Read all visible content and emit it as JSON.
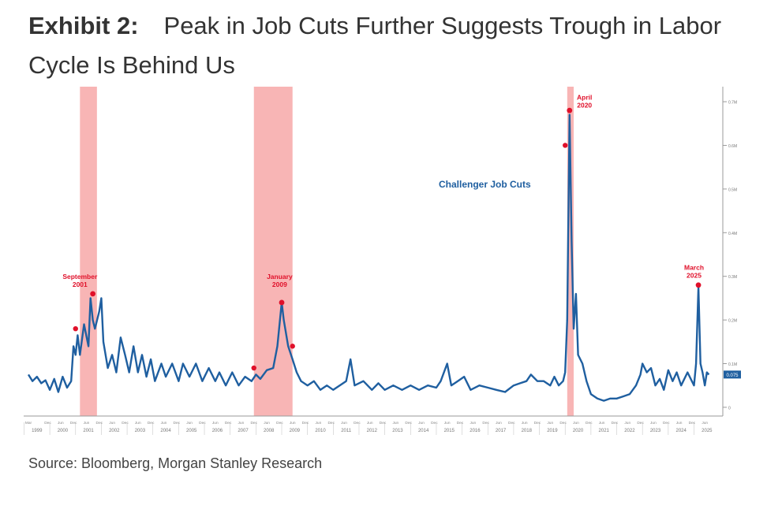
{
  "header": {
    "exhibit_label": "Exhibit 2:",
    "title": "Peak in Job Cuts Further Suggests Trough in Labor Cycle Is Behind Us"
  },
  "source": "Source: Bloomberg, Morgan Stanley Research",
  "colors": {
    "line": "#1f5fa0",
    "recession": "#f7a8a8",
    "annotation": "#e0102a",
    "label": "#1f5fa0"
  },
  "chart_data": {
    "type": "line",
    "series_label": "Challenger Job Cuts",
    "last_value_label": "0.075",
    "x_domain": [
      1999.17,
      2025.75
    ],
    "ylim": [
      -0.02,
      0.72
    ],
    "y_ticks": [
      {
        "value": 0,
        "label": "0"
      },
      {
        "value": 0.1,
        "label": "0.1M"
      },
      {
        "value": 0.2,
        "label": "0.2M"
      },
      {
        "value": 0.3,
        "label": "0.3M"
      },
      {
        "value": 0.4,
        "label": "0.4M"
      },
      {
        "value": 0.5,
        "label": "0.5M"
      },
      {
        "value": 0.6,
        "label": "0.6M"
      },
      {
        "value": 0.7,
        "label": "0.7M"
      }
    ],
    "year_labels": [
      "1999",
      "2000",
      "2001",
      "2002",
      "2003",
      "2004",
      "2005",
      "2006",
      "2007",
      "2008",
      "2009",
      "2010",
      "2011",
      "2012",
      "2013",
      "2014",
      "2015",
      "2016",
      "2017",
      "2018",
      "2019",
      "2020",
      "2021",
      "2022",
      "2023",
      "2024",
      "2025"
    ],
    "month_ticks": [
      "Mar",
      "Dec",
      "Jun",
      "Dec",
      "Jun",
      "Dec",
      "Jun",
      "Dec",
      "Jun",
      "Dec",
      "Jun",
      "Dec",
      "Jun",
      "Dec",
      "Jun",
      "Dec",
      "Jun",
      "Dec",
      "Jun",
      "Dec",
      "Jun",
      "Dec",
      "Jun",
      "Dec",
      "Jun",
      "Dec",
      "Jun",
      "Dec",
      "Jun",
      "Dec",
      "Jun",
      "Dec",
      "Jun",
      "Dec",
      "Jun",
      "Dec",
      "Jun",
      "Dec",
      "Jun",
      "Dec",
      "Jun",
      "Dec",
      "Jun",
      "Dec",
      "Jun",
      "Dec",
      "Jun",
      "Dec",
      "Jun",
      "Dec",
      "Jun",
      "Dec",
      "Jun"
    ],
    "recessions": [
      {
        "start": 2001.17,
        "end": 2001.83
      },
      {
        "start": 2007.92,
        "end": 2009.42
      },
      {
        "start": 2020.08,
        "end": 2020.33
      }
    ],
    "points": [
      [
        1999.17,
        0.075
      ],
      [
        1999.33,
        0.06
      ],
      [
        1999.5,
        0.07
      ],
      [
        1999.67,
        0.055
      ],
      [
        1999.83,
        0.062
      ],
      [
        2000.0,
        0.04
      ],
      [
        2000.17,
        0.065
      ],
      [
        2000.33,
        0.035
      ],
      [
        2000.5,
        0.07
      ],
      [
        2000.67,
        0.045
      ],
      [
        2000.83,
        0.06
      ],
      [
        2000.92,
        0.14
      ],
      [
        2001.0,
        0.12
      ],
      [
        2001.08,
        0.165
      ],
      [
        2001.17,
        0.12
      ],
      [
        2001.33,
        0.19
      ],
      [
        2001.5,
        0.14
      ],
      [
        2001.58,
        0.25
      ],
      [
        2001.67,
        0.2
      ],
      [
        2001.75,
        0.18
      ],
      [
        2001.92,
        0.22
      ],
      [
        2002.0,
        0.25
      ],
      [
        2002.08,
        0.15
      ],
      [
        2002.25,
        0.09
      ],
      [
        2002.42,
        0.12
      ],
      [
        2002.58,
        0.08
      ],
      [
        2002.75,
        0.16
      ],
      [
        2002.92,
        0.12
      ],
      [
        2003.08,
        0.08
      ],
      [
        2003.25,
        0.14
      ],
      [
        2003.42,
        0.08
      ],
      [
        2003.58,
        0.12
      ],
      [
        2003.75,
        0.07
      ],
      [
        2003.92,
        0.11
      ],
      [
        2004.08,
        0.06
      ],
      [
        2004.33,
        0.1
      ],
      [
        2004.5,
        0.07
      ],
      [
        2004.75,
        0.1
      ],
      [
        2005.0,
        0.06
      ],
      [
        2005.17,
        0.1
      ],
      [
        2005.42,
        0.07
      ],
      [
        2005.67,
        0.1
      ],
      [
        2005.92,
        0.06
      ],
      [
        2006.17,
        0.09
      ],
      [
        2006.42,
        0.06
      ],
      [
        2006.58,
        0.08
      ],
      [
        2006.83,
        0.05
      ],
      [
        2007.08,
        0.08
      ],
      [
        2007.33,
        0.05
      ],
      [
        2007.58,
        0.07
      ],
      [
        2007.83,
        0.06
      ],
      [
        2008.0,
        0.075
      ],
      [
        2008.17,
        0.065
      ],
      [
        2008.42,
        0.085
      ],
      [
        2008.67,
        0.09
      ],
      [
        2008.83,
        0.14
      ],
      [
        2009.0,
        0.24
      ],
      [
        2009.08,
        0.2
      ],
      [
        2009.25,
        0.14
      ],
      [
        2009.42,
        0.11
      ],
      [
        2009.58,
        0.08
      ],
      [
        2009.75,
        0.06
      ],
      [
        2010.0,
        0.05
      ],
      [
        2010.25,
        0.06
      ],
      [
        2010.5,
        0.04
      ],
      [
        2010.75,
        0.05
      ],
      [
        2011.0,
        0.04
      ],
      [
        2011.25,
        0.05
      ],
      [
        2011.5,
        0.06
      ],
      [
        2011.67,
        0.11
      ],
      [
        2011.83,
        0.05
      ],
      [
        2012.17,
        0.06
      ],
      [
        2012.5,
        0.04
      ],
      [
        2012.75,
        0.055
      ],
      [
        2013.0,
        0.04
      ],
      [
        2013.33,
        0.05
      ],
      [
        2013.67,
        0.04
      ],
      [
        2014.0,
        0.05
      ],
      [
        2014.33,
        0.04
      ],
      [
        2014.67,
        0.05
      ],
      [
        2015.0,
        0.045
      ],
      [
        2015.17,
        0.06
      ],
      [
        2015.42,
        0.1
      ],
      [
        2015.58,
        0.05
      ],
      [
        2015.83,
        0.06
      ],
      [
        2016.08,
        0.07
      ],
      [
        2016.33,
        0.04
      ],
      [
        2016.67,
        0.05
      ],
      [
        2017.0,
        0.045
      ],
      [
        2017.33,
        0.04
      ],
      [
        2017.67,
        0.035
      ],
      [
        2018.0,
        0.05
      ],
      [
        2018.25,
        0.055
      ],
      [
        2018.5,
        0.06
      ],
      [
        2018.67,
        0.075
      ],
      [
        2018.92,
        0.06
      ],
      [
        2019.17,
        0.06
      ],
      [
        2019.42,
        0.05
      ],
      [
        2019.58,
        0.07
      ],
      [
        2019.75,
        0.05
      ],
      [
        2019.92,
        0.06
      ],
      [
        2020.0,
        0.08
      ],
      [
        2020.08,
        0.2
      ],
      [
        2020.17,
        0.67
      ],
      [
        2020.25,
        0.38
      ],
      [
        2020.33,
        0.18
      ],
      [
        2020.42,
        0.26
      ],
      [
        2020.5,
        0.12
      ],
      [
        2020.67,
        0.1
      ],
      [
        2020.83,
        0.06
      ],
      [
        2021.0,
        0.03
      ],
      [
        2021.25,
        0.02
      ],
      [
        2021.5,
        0.015
      ],
      [
        2021.75,
        0.02
      ],
      [
        2022.0,
        0.02
      ],
      [
        2022.25,
        0.025
      ],
      [
        2022.5,
        0.03
      ],
      [
        2022.75,
        0.05
      ],
      [
        2022.92,
        0.075
      ],
      [
        2023.0,
        0.1
      ],
      [
        2023.17,
        0.08
      ],
      [
        2023.33,
        0.09
      ],
      [
        2023.5,
        0.05
      ],
      [
        2023.67,
        0.065
      ],
      [
        2023.83,
        0.04
      ],
      [
        2024.0,
        0.085
      ],
      [
        2024.17,
        0.06
      ],
      [
        2024.33,
        0.08
      ],
      [
        2024.5,
        0.05
      ],
      [
        2024.75,
        0.08
      ],
      [
        2025.0,
        0.05
      ],
      [
        2025.08,
        0.1
      ],
      [
        2025.17,
        0.275
      ],
      [
        2025.25,
        0.1
      ],
      [
        2025.33,
        0.08
      ],
      [
        2025.42,
        0.05
      ],
      [
        2025.5,
        0.08
      ],
      [
        2025.58,
        0.075
      ]
    ],
    "annotations": [
      {
        "label": "September 2001",
        "line1": "September",
        "line2": "2001",
        "x": 2001.67,
        "y": 0.26,
        "tx": 2001.17,
        "ty": 0.28
      },
      {
        "label": "January 2009",
        "line1": "January",
        "line2": "2009",
        "x": 2009.0,
        "y": 0.24,
        "tx": 2008.92,
        "ty": 0.28
      },
      {
        "label": "April 2020",
        "line1": "April",
        "line2": "2020",
        "x": 2020.17,
        "y": 0.68,
        "tx": 2020.75,
        "ty": 0.69
      },
      {
        "label": "March 2025",
        "line1": "March",
        "line2": "2025",
        "x": 2025.17,
        "y": 0.28,
        "tx": 2025.0,
        "ty": 0.3
      }
    ],
    "markers": [
      {
        "x": 2001.0,
        "y": 0.18
      },
      {
        "x": 2007.92,
        "y": 0.09
      },
      {
        "x": 2009.42,
        "y": 0.14
      },
      {
        "x": 2020.0,
        "y": 0.6
      }
    ]
  }
}
